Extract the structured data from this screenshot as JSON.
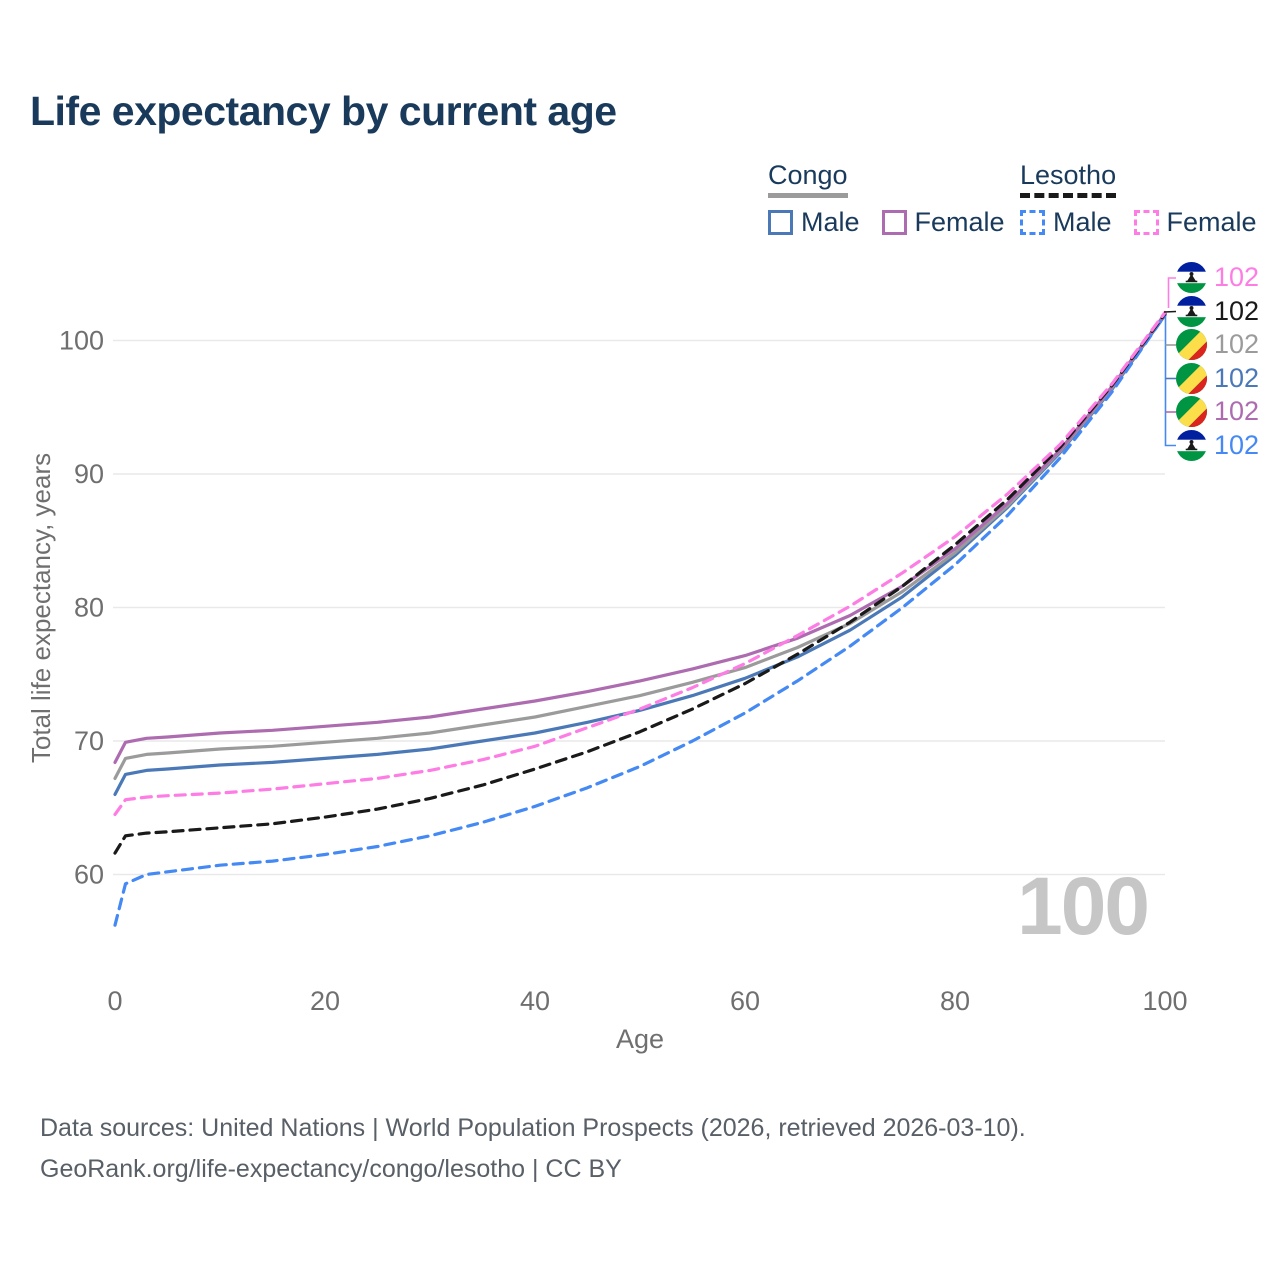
{
  "title": "Life expectancy by current age",
  "big_age_counter": "100",
  "legend": {
    "groups": [
      {
        "label": "Congo",
        "underline_color": "#9b9b9b",
        "underline_dashed": false,
        "items": [
          {
            "label": "Male",
            "color": "#4b79b7",
            "dashed": false
          },
          {
            "label": "Female",
            "color": "#ae6cb0",
            "dashed": false
          }
        ]
      },
      {
        "label": "Lesotho",
        "underline_color": "#1a1a1a",
        "underline_dashed": true,
        "items": [
          {
            "label": "Male",
            "color": "#4489f4",
            "dashed": true
          },
          {
            "label": "Female",
            "color": "#fe7de4",
            "dashed": true
          }
        ]
      }
    ]
  },
  "chart_data": {
    "type": "line",
    "title": "Life expectancy by current age",
    "xlabel": "Age",
    "ylabel": "Total life expectancy, years",
    "x_ticks": [
      0,
      20,
      40,
      60,
      80,
      100
    ],
    "y_ticks": [
      60,
      70,
      80,
      90,
      100
    ],
    "xlim": [
      0,
      100
    ],
    "ylim": [
      55.5,
      104
    ],
    "grid": "horizontal-only",
    "legend_position": "top-right",
    "x": [
      0,
      1,
      3,
      5,
      10,
      15,
      20,
      25,
      30,
      35,
      40,
      45,
      50,
      55,
      60,
      65,
      70,
      75,
      80,
      85,
      90,
      95,
      100
    ],
    "series": [
      {
        "name": "Congo Male",
        "country": "Congo",
        "sex": "Male",
        "color": "#4b79b7",
        "dashed": false,
        "values": [
          66.0,
          67.5,
          67.8,
          67.9,
          68.2,
          68.4,
          68.7,
          69.0,
          69.4,
          70.0,
          70.6,
          71.4,
          72.3,
          73.4,
          74.7,
          76.3,
          78.3,
          80.8,
          83.9,
          87.5,
          91.6,
          96.4,
          101.9
        ]
      },
      {
        "name": "Congo",
        "country": "Congo",
        "sex": "Both",
        "color": "#9b9b9b",
        "dashed": false,
        "values": [
          67.2,
          68.7,
          69.0,
          69.1,
          69.4,
          69.6,
          69.9,
          70.2,
          70.6,
          71.2,
          71.8,
          72.6,
          73.4,
          74.4,
          75.5,
          77.0,
          78.8,
          81.2,
          84.1,
          87.6,
          91.7,
          96.5,
          102.0
        ]
      },
      {
        "name": "Congo Female",
        "country": "Congo",
        "sex": "Female",
        "color": "#ae6cb0",
        "dashed": false,
        "values": [
          68.4,
          69.9,
          70.2,
          70.3,
          70.6,
          70.8,
          71.1,
          71.4,
          71.8,
          72.4,
          73.0,
          73.7,
          74.5,
          75.4,
          76.4,
          77.7,
          79.4,
          81.6,
          84.4,
          87.8,
          91.8,
          96.6,
          102.0
        ]
      },
      {
        "name": "Lesotho Male",
        "country": "Lesotho",
        "sex": "Male",
        "color": "#4489f4",
        "dashed": true,
        "values": [
          56.2,
          59.3,
          60.0,
          60.2,
          60.7,
          61.0,
          61.5,
          62.1,
          62.9,
          63.9,
          65.1,
          66.5,
          68.1,
          70.0,
          72.1,
          74.5,
          77.1,
          80.0,
          83.2,
          86.9,
          91.2,
          96.2,
          101.9
        ]
      },
      {
        "name": "Lesotho",
        "country": "Lesotho",
        "sex": "Both",
        "color": "#1a1a1a",
        "dashed": true,
        "values": [
          61.6,
          62.9,
          63.1,
          63.2,
          63.5,
          63.8,
          64.3,
          64.9,
          65.7,
          66.7,
          67.9,
          69.2,
          70.7,
          72.4,
          74.3,
          76.5,
          78.9,
          81.6,
          84.7,
          88.1,
          92.0,
          96.7,
          102.0
        ]
      },
      {
        "name": "Lesotho Female",
        "country": "Lesotho",
        "sex": "Female",
        "color": "#fe7de4",
        "dashed": true,
        "values": [
          64.5,
          65.6,
          65.8,
          65.9,
          66.1,
          66.4,
          66.8,
          67.2,
          67.8,
          68.6,
          69.6,
          71.0,
          72.4,
          74.0,
          75.8,
          77.9,
          80.1,
          82.6,
          85.3,
          88.5,
          92.2,
          96.8,
          102.1
        ]
      }
    ]
  },
  "endpoint_labels": [
    {
      "series": "Lesotho Female",
      "value": "102",
      "color": "#fe7de4",
      "flag": "lesotho"
    },
    {
      "series": "Lesotho",
      "value": "102",
      "color": "#1a1a1a",
      "flag": "lesotho"
    },
    {
      "series": "Congo",
      "value": "102",
      "color": "#9b9b9b",
      "flag": "congo"
    },
    {
      "series": "Congo Male",
      "value": "102",
      "color": "#4b79b7",
      "flag": "congo"
    },
    {
      "series": "Congo Female",
      "value": "102",
      "color": "#ae6cb0",
      "flag": "congo"
    },
    {
      "series": "Lesotho Male",
      "value": "102",
      "color": "#4489f4",
      "flag": "lesotho"
    }
  ],
  "flag_colors": {
    "congo": {
      "green": "#009543",
      "yellow": "#fbde4a",
      "red": "#dc241f"
    },
    "lesotho": {
      "blue": "#00209f",
      "white": "#ffffff",
      "green": "#009543",
      "hat": "#1a1a1a"
    }
  },
  "footer": {
    "line1": "Data sources: United Nations | World Population Prospects (2026, retrieved 2026-03-10).",
    "line2": "GeoRank.org/life-expectancy/congo/lesotho | CC BY"
  }
}
